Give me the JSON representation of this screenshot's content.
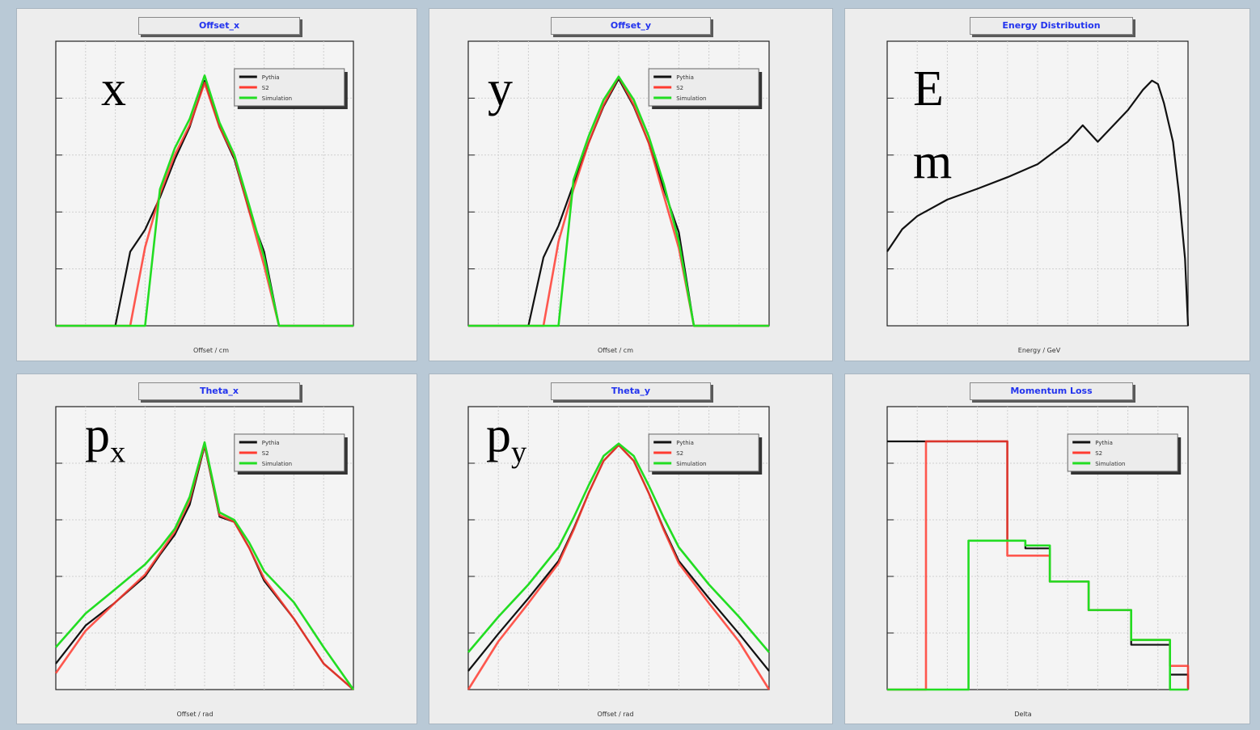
{
  "colors": {
    "pythia": "#111111",
    "s2": "#ff3b30",
    "simulation": "#22dd22"
  },
  "legend_labels": [
    "Pythia",
    "S2",
    "Simulation"
  ],
  "chart_data": [
    {
      "id": "offset_x",
      "type": "line",
      "title": "Offset_x",
      "symbol": "x",
      "symbol_sub": "",
      "xlabel": "Offset / cm",
      "yscale": "log",
      "legend": true,
      "x": [
        -0.01,
        -0.008,
        -0.006,
        -0.005,
        -0.004,
        -0.003,
        -0.002,
        -0.001,
        0,
        0.001,
        0.002,
        0.003,
        0.004,
        0.005,
        0.006,
        0.008,
        0.01
      ],
      "series": [
        {
          "name": "Pythia",
          "values": [
            1,
            1,
            1,
            40,
            120,
            600,
            4000,
            20000,
            200000,
            20000,
            4000,
            300,
            40,
            1,
            1,
            1,
            1
          ]
        },
        {
          "name": "S2",
          "values": [
            1,
            1,
            1,
            1,
            50,
            700,
            5000,
            22000,
            180000,
            20000,
            4500,
            300,
            20,
            1,
            1,
            1,
            1
          ]
        },
        {
          "name": "Simulation",
          "values": [
            1,
            1,
            1,
            1,
            1,
            900,
            7000,
            30000,
            260000,
            25000,
            5000,
            400,
            30,
            1,
            1,
            1,
            1
          ]
        }
      ]
    },
    {
      "id": "offset_y",
      "type": "line",
      "title": "Offset_y",
      "symbol": "y",
      "symbol_sub": "",
      "xlabel": "Offset / cm",
      "yscale": "log",
      "legend": true,
      "x": [
        -0.01,
        -0.008,
        -0.006,
        -0.005,
        -0.004,
        -0.003,
        -0.002,
        -0.001,
        0,
        0.001,
        0.002,
        0.003,
        0.004,
        0.005,
        0.006,
        0.008,
        0.01
      ],
      "series": [
        {
          "name": "Pythia",
          "values": [
            1,
            1,
            1,
            20,
            80,
            500,
            3000,
            15000,
            50000,
            15000,
            3000,
            400,
            60,
            1,
            1,
            1,
            1
          ]
        },
        {
          "name": "S2",
          "values": [
            1,
            1,
            1,
            1,
            40,
            400,
            3000,
            16000,
            55000,
            16000,
            3000,
            300,
            30,
            1,
            1,
            1,
            1
          ]
        },
        {
          "name": "Simulation",
          "values": [
            1,
            1,
            1,
            1,
            1,
            600,
            4000,
            20000,
            55000,
            20000,
            4000,
            500,
            40,
            1,
            1,
            1,
            1
          ]
        }
      ]
    },
    {
      "id": "energy",
      "type": "line",
      "title": "Energy Distribution",
      "symbol": "E",
      "symbol2": "m",
      "xlabel": "Energy / GeV",
      "yscale": "log",
      "legend": false,
      "x": [
        0,
        0.05,
        0.1,
        0.2,
        0.3,
        0.4,
        0.5,
        0.6,
        0.65,
        0.7,
        0.8,
        0.85,
        0.88,
        0.9,
        0.92,
        0.95,
        0.97,
        0.99,
        1.0
      ],
      "series": [
        {
          "name": "Pythia",
          "values": [
            10,
            20,
            30,
            50,
            70,
            100,
            150,
            300,
            500,
            300,
            800,
            1500,
            2000,
            1800,
            1000,
            300,
            60,
            8,
            1
          ]
        }
      ]
    },
    {
      "id": "theta_x",
      "type": "line",
      "title": "Theta_x",
      "symbol": "p",
      "symbol_sub": "x",
      "xlabel": "Offset / rad",
      "yscale": "log",
      "legend": true,
      "x": [
        -0.01,
        -0.008,
        -0.006,
        -0.004,
        -0.003,
        -0.002,
        -0.001,
        0,
        0.001,
        0.002,
        0.003,
        0.004,
        0.006,
        0.008,
        0.01
      ],
      "series": [
        {
          "name": "Pythia",
          "values": [
            3,
            15,
            40,
            120,
            300,
            700,
            2500,
            30000,
            1500,
            1200,
            400,
            100,
            20,
            3,
            1
          ]
        },
        {
          "name": "S2",
          "values": [
            2,
            12,
            40,
            130,
            320,
            800,
            3000,
            32000,
            1600,
            1200,
            400,
            110,
            20,
            3,
            1
          ]
        },
        {
          "name": "Simulation",
          "values": [
            6,
            25,
            70,
            200,
            400,
            900,
            3500,
            35000,
            1800,
            1300,
            500,
            150,
            40,
            6,
            1
          ]
        }
      ]
    },
    {
      "id": "theta_y",
      "type": "line",
      "title": "Theta_y",
      "symbol": "p",
      "symbol_sub": "y",
      "xlabel": "Offset / rad",
      "yscale": "log",
      "legend": true,
      "x": [
        -0.01,
        -0.008,
        -0.006,
        -0.004,
        -0.003,
        -0.002,
        -0.001,
        0,
        0.001,
        0.002,
        0.003,
        0.004,
        0.006,
        0.008,
        0.01
      ],
      "series": [
        {
          "name": "Pythia",
          "values": [
            2,
            8,
            30,
            120,
            400,
            1500,
            5000,
            9000,
            5000,
            1500,
            400,
            120,
            30,
            8,
            2
          ]
        },
        {
          "name": "S2",
          "values": [
            1,
            6,
            25,
            110,
            380,
            1500,
            5000,
            9000,
            5000,
            1500,
            380,
            110,
            25,
            6,
            1
          ]
        },
        {
          "name": "Simulation",
          "values": [
            4,
            15,
            50,
            200,
            600,
            2000,
            6000,
            9500,
            6000,
            2000,
            600,
            200,
            50,
            15,
            4
          ]
        }
      ]
    },
    {
      "id": "momentum_loss",
      "type": "line",
      "title": "Momentum Loss",
      "symbol": "",
      "symbol_sub": "",
      "xlabel": "Delta",
      "yscale": "log",
      "legend": true,
      "x": [
        1e-05,
        3e-05,
        0.0001,
        0.0003,
        0.0005,
        0.001,
        0.003,
        0.01,
        0.03,
        0.05
      ],
      "series": [
        {
          "name": "Pythia",
          "values": [
            100000,
            100000,
            100000,
            1000,
            700,
            150,
            40,
            8,
            2,
            1
          ]
        },
        {
          "name": "S2",
          "values": [
            1,
            100000,
            100000,
            500,
            500,
            150,
            40,
            10,
            3,
            1
          ]
        },
        {
          "name": "Simulation",
          "values": [
            1,
            1,
            1000,
            1000,
            800,
            150,
            40,
            10,
            1,
            1
          ]
        }
      ]
    }
  ]
}
